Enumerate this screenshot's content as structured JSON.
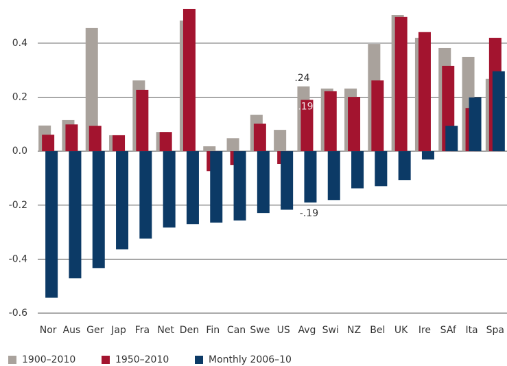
{
  "chart_data": {
    "type": "bar",
    "categories": [
      "Nor",
      "Aus",
      "Ger",
      "Jap",
      "Fra",
      "Net",
      "Den",
      "Fin",
      "Can",
      "Swe",
      "US",
      "Avg",
      "Swi",
      "NZ",
      "Bel",
      "UK",
      "Ire",
      "SAf",
      "Ita",
      "Spa"
    ],
    "series": [
      {
        "name": "1900–2010",
        "color": "#a9a29c",
        "values": [
          0.095,
          0.115,
          0.456,
          0.059,
          0.262,
          0.071,
          0.484,
          0.018,
          0.048,
          0.135,
          0.079,
          0.24,
          0.232,
          0.232,
          0.397,
          0.504,
          0.42,
          0.382,
          0.349,
          0.268
        ],
        "value_labels": [
          null,
          null,
          null,
          null,
          null,
          null,
          null,
          null,
          null,
          null,
          null,
          ".24",
          null,
          null,
          null,
          null,
          null,
          null,
          null,
          null
        ]
      },
      {
        "name": "1950–2010",
        "color": "#a3142f",
        "values": [
          0.061,
          0.099,
          0.094,
          0.059,
          0.227,
          0.071,
          0.527,
          -0.074,
          -0.051,
          0.102,
          -0.048,
          0.19,
          0.222,
          0.201,
          0.262,
          0.497,
          0.441,
          0.316,
          0.16,
          0.42
        ],
        "value_labels": [
          null,
          null,
          null,
          null,
          null,
          null,
          null,
          null,
          null,
          null,
          null,
          ".19",
          null,
          null,
          null,
          null,
          null,
          null,
          null,
          null
        ]
      },
      {
        "name": "Monthly 2006–10",
        "color": "#0c3a66",
        "values": [
          -0.543,
          -0.471,
          -0.433,
          -0.364,
          -0.324,
          -0.283,
          -0.27,
          -0.265,
          -0.257,
          -0.229,
          -0.217,
          -0.19,
          -0.181,
          -0.138,
          -0.13,
          -0.107,
          -0.031,
          0.094,
          0.199,
          0.296
        ],
        "value_labels": [
          null,
          null,
          null,
          null,
          null,
          null,
          null,
          null,
          null,
          null,
          null,
          "-.19",
          null,
          null,
          null,
          null,
          null,
          null,
          null,
          null
        ]
      }
    ],
    "ylim": [
      -0.6,
      0.56
    ],
    "yticks": [
      0.4,
      0.2,
      {
        "value": 0,
        "label": "0.0"
      },
      -0.2,
      -0.4,
      -0.6
    ],
    "grid": true
  }
}
